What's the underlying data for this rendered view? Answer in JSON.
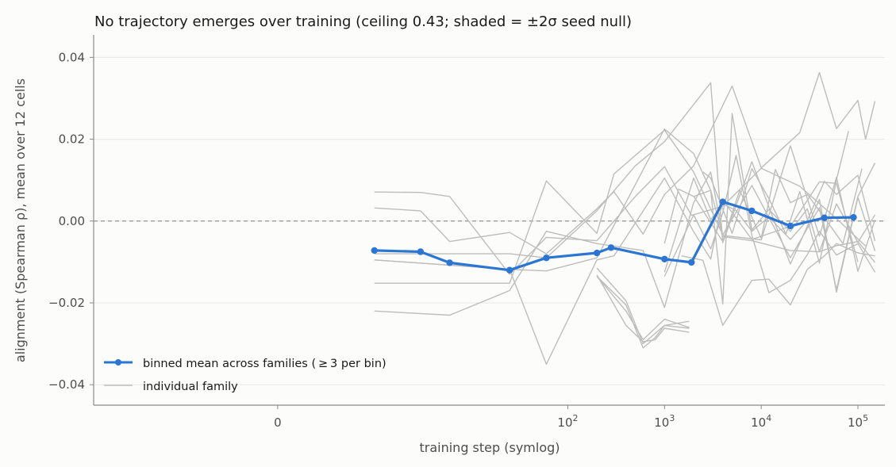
{
  "chart_data": {
    "type": "line",
    "title": "No trajectory emerges over training (ceiling 0.43; shaded = ±2σ seed null)",
    "xlabel": "training step (symlog)",
    "ylabel": "alignment (Spearman ρ), mean over 12 cells",
    "xscale": "symlog",
    "xlim": [
      -8,
      190000
    ],
    "ylim": [
      -0.045,
      0.0455
    ],
    "grid": "horizontal",
    "reference_line": 0,
    "x_ticks": [
      {
        "value": 0,
        "label": "0"
      },
      {
        "value": 100,
        "label": "10",
        "exp": "2"
      },
      {
        "value": 1000,
        "label": "10",
        "exp": "3"
      },
      {
        "value": 10000,
        "label": "10",
        "exp": "4"
      },
      {
        "value": 100000,
        "label": "10",
        "exp": "5"
      }
    ],
    "y_ticks": [
      {
        "value": 0.04,
        "label": "0.04"
      },
      {
        "value": 0.02,
        "label": "0.02"
      },
      {
        "value": 0.0,
        "label": "0.00"
      },
      {
        "value": -0.02,
        "label": "−0.02"
      },
      {
        "value": -0.04,
        "label": "−0.04"
      }
    ],
    "legend": {
      "position": "lower-left",
      "entries": [
        {
          "label": "binned mean across families ( ≥ 3 per bin)",
          "color": "#2a76d2"
        },
        {
          "label": "individual family",
          "color": "#bdbdbd"
        }
      ]
    },
    "mean_series": {
      "name": "binned mean across families ( ≥ 3 per bin)",
      "color": "#2a76d2",
      "points": [
        [
          1,
          -0.0072
        ],
        [
          3,
          -0.0075
        ],
        [
          6,
          -0.0102
        ],
        [
          25,
          -0.012
        ],
        [
          60,
          -0.009
        ],
        [
          200,
          -0.0078
        ],
        [
          280,
          -0.0065
        ],
        [
          1000,
          -0.0093
        ],
        [
          1900,
          -0.0101
        ],
        [
          4000,
          0.0047
        ],
        [
          8000,
          0.0025
        ],
        [
          20000,
          -0.0012
        ],
        [
          45000,
          0.0008
        ],
        [
          90000,
          0.0009
        ]
      ]
    },
    "family_series": [
      {
        "color": "#bdbdbd",
        "points": [
          [
            1,
            0.0071
          ],
          [
            3,
            0.007
          ],
          [
            6,
            0.006
          ],
          [
            25,
            -0.013
          ],
          [
            60,
            -0.004
          ],
          [
            200,
            -0.0048
          ],
          [
            500,
            0.006
          ],
          [
            1000,
            0.0133
          ],
          [
            1900,
            0.0014
          ],
          [
            4000,
            0.0036
          ],
          [
            10000,
            0.0129
          ],
          [
            25000,
            0.0085
          ],
          [
            60000,
            0.0006
          ],
          [
            120000,
            -0.0061
          ]
        ]
      },
      {
        "color": "#bdbdbd",
        "points": [
          [
            1,
            0.0032
          ],
          [
            3,
            0.0025
          ],
          [
            6,
            -0.005
          ],
          [
            25,
            -0.0028
          ],
          [
            60,
            -0.008
          ],
          [
            200,
            0.003
          ],
          [
            300,
            0.0072
          ],
          [
            600,
            -0.0032
          ],
          [
            1000,
            0.0065
          ],
          [
            2000,
            0.0135
          ],
          [
            5000,
            0.033
          ],
          [
            10000,
            0.013
          ],
          [
            25000,
            0.0216
          ],
          [
            40000,
            0.0363
          ],
          [
            60000,
            0.0226
          ],
          [
            100000,
            0.0295
          ],
          [
            120000,
            0.02
          ],
          [
            150000,
            0.0293
          ]
        ]
      },
      {
        "color": "#bdbdbd",
        "points": [
          [
            1,
            -0.008
          ],
          [
            25,
            -0.008
          ],
          [
            60,
            -0.009
          ],
          [
            200,
            0.0025
          ],
          [
            500,
            0.0135
          ],
          [
            1000,
            0.0194
          ],
          [
            3000,
            0.0338
          ],
          [
            4000,
            -0.0053
          ],
          [
            8000,
            0.0145
          ],
          [
            20000,
            -0.0105
          ],
          [
            40000,
            0.0053
          ],
          [
            60000,
            -0.0174
          ],
          [
            100000,
            0.0058
          ],
          [
            150000,
            -0.0073
          ]
        ]
      },
      {
        "color": "#bdbdbd",
        "points": [
          [
            1,
            -0.0152
          ],
          [
            25,
            -0.0152
          ],
          [
            60,
            0.0098
          ],
          [
            200,
            -0.003
          ],
          [
            300,
            0.0115
          ],
          [
            1000,
            0.0222
          ],
          [
            2000,
            0.012
          ],
          [
            4000,
            -0.0034
          ],
          [
            8000,
            0.0087
          ],
          [
            20000,
            -0.009
          ],
          [
            40000,
            0.0033
          ],
          [
            60000,
            -0.0168
          ],
          [
            100000,
            0.006
          ],
          [
            150000,
            0.0142
          ]
        ]
      },
      {
        "color": "#bdbdbd",
        "points": [
          [
            1,
            -0.022
          ],
          [
            6,
            -0.023
          ],
          [
            25,
            -0.017
          ],
          [
            60,
            -0.0025
          ],
          [
            200,
            -0.0055
          ],
          [
            600,
            -0.0072
          ],
          [
            1000,
            -0.0211
          ],
          [
            2000,
            0.0045
          ],
          [
            3000,
            0.012
          ],
          [
            4000,
            -0.0035
          ],
          [
            10000,
            -0.0046
          ],
          [
            20000,
            0.0184
          ],
          [
            40000,
            -0.0037
          ],
          [
            60000,
            0.0107
          ],
          [
            100000,
            -0.0123
          ],
          [
            150000,
            0.0003
          ]
        ]
      },
      {
        "color": "#bdbdbd",
        "points": [
          [
            1,
            -0.0095
          ],
          [
            25,
            -0.0118
          ],
          [
            60,
            -0.035
          ],
          [
            200,
            -0.0095
          ],
          [
            300,
            -0.0085
          ],
          [
            1000,
            0.0105
          ],
          [
            2000,
            -0.0026
          ],
          [
            3000,
            -0.0093
          ],
          [
            4000,
            0.0052
          ],
          [
            8000,
            -0.0045
          ],
          [
            20000,
            -0.0013
          ],
          [
            40000,
            0.0096
          ],
          [
            60000,
            0.0092
          ],
          [
            100000,
            -0.01
          ]
        ]
      },
      {
        "color": "#bdbdbd",
        "points": [
          [
            1,
            -0.0095
          ],
          [
            25,
            -0.0118
          ],
          [
            60,
            -0.0122
          ],
          [
            200,
            -0.009
          ],
          [
            1000,
            0.0225
          ],
          [
            2000,
            0.0165
          ],
          [
            3000,
            0.0075
          ],
          [
            4000,
            -0.0038
          ],
          [
            8000,
            -0.0048
          ],
          [
            20000,
            -0.0072
          ],
          [
            40000,
            -0.0075
          ],
          [
            60000,
            -0.006
          ],
          [
            100000,
            -0.005
          ],
          [
            150000,
            -0.0101
          ]
        ]
      },
      {
        "color": "#bdbdbd",
        "points": [
          [
            200,
            -0.0115
          ],
          [
            400,
            -0.0195
          ],
          [
            600,
            -0.03
          ],
          [
            1000,
            -0.0255
          ],
          [
            1800,
            -0.0245
          ]
        ]
      },
      {
        "color": "#bdbdbd",
        "points": [
          [
            200,
            -0.0135
          ],
          [
            400,
            -0.022
          ],
          [
            600,
            -0.029
          ],
          [
            1000,
            -0.024
          ],
          [
            1800,
            -0.026
          ]
        ]
      },
      {
        "color": "#bdbdbd",
        "points": [
          [
            200,
            -0.0132
          ],
          [
            400,
            -0.0255
          ],
          [
            600,
            -0.0295
          ],
          [
            800,
            -0.029
          ],
          [
            1000,
            -0.0262
          ],
          [
            1800,
            -0.0272
          ]
        ]
      },
      {
        "color": "#bdbdbd",
        "points": [
          [
            200,
            -0.0135
          ],
          [
            400,
            -0.0205
          ],
          [
            600,
            -0.031
          ],
          [
            800,
            -0.0285
          ],
          [
            1000,
            -0.0255
          ],
          [
            1800,
            -0.0262
          ]
        ]
      },
      {
        "color": "#bdbdbd",
        "points": [
          [
            1000,
            -0.0055
          ],
          [
            1400,
            0.0078
          ],
          [
            2000,
            0.006
          ],
          [
            3000,
            0.0075
          ],
          [
            4000,
            -0.0203
          ],
          [
            5000,
            0.0263
          ],
          [
            8000,
            -0.0022
          ],
          [
            12000,
            0.0028
          ],
          [
            20000,
            -0.0025
          ],
          [
            30000,
            0.003
          ],
          [
            40000,
            -0.0075
          ],
          [
            60000,
            0.0042
          ],
          [
            100000,
            -0.0052
          ],
          [
            150000,
            0.0015
          ]
        ]
      },
      {
        "color": "#bdbdbd",
        "points": [
          [
            1000,
            -0.0135
          ],
          [
            2000,
            0.0015
          ],
          [
            3000,
            -0.0068
          ],
          [
            4000,
            0.002
          ],
          [
            5500,
            0.016
          ],
          [
            8000,
            -0.0035
          ],
          [
            12000,
            -0.0175
          ],
          [
            20000,
            -0.0145
          ],
          [
            30000,
            -0.0082
          ],
          [
            40000,
            -0.0025
          ],
          [
            60000,
            -0.0083
          ],
          [
            100000,
            -0.0055
          ],
          [
            150000,
            -0.0125
          ]
        ]
      },
      {
        "color": "#bdbdbd",
        "points": [
          [
            1000,
            -0.0125
          ],
          [
            2000,
            0.0105
          ],
          [
            3000,
            0.0003
          ],
          [
            4000,
            0.0042
          ],
          [
            5500,
            0.0026
          ],
          [
            8000,
            -0.0025
          ],
          [
            12000,
            0.001
          ],
          [
            20000,
            -0.0045
          ],
          [
            30000,
            0.0002
          ],
          [
            45000,
            0.0097
          ],
          [
            60000,
            0.0065
          ],
          [
            100000,
            0.0112
          ],
          [
            150000,
            -0.0049
          ]
        ]
      },
      {
        "color": "#bdbdbd",
        "points": [
          [
            1500,
            -0.0085
          ],
          [
            2500,
            -0.0096
          ],
          [
            4000,
            -0.0255
          ],
          [
            8000,
            -0.0145
          ],
          [
            12000,
            -0.0142
          ],
          [
            20000,
            -0.0205
          ],
          [
            30000,
            -0.0118
          ],
          [
            45000,
            -0.0085
          ],
          [
            60000,
            -0.0055
          ],
          [
            100000,
            -0.0078
          ],
          [
            150000,
            -0.0085
          ]
        ]
      },
      {
        "color": "#bdbdbd",
        "points": [
          [
            2000,
            0.0061
          ],
          [
            4000,
            -0.005
          ],
          [
            6000,
            0.0075
          ],
          [
            10000,
            -0.0042
          ],
          [
            14000,
            0.0126
          ],
          [
            20000,
            0.0045
          ],
          [
            30000,
            0.0065
          ],
          [
            45000,
            0.0008
          ],
          [
            70000,
            -0.0055
          ],
          [
            110000,
            0.0128
          ]
        ]
      },
      {
        "color": "#bdbdbd",
        "points": [
          [
            2500,
            0.012
          ],
          [
            3000,
            0.0105
          ],
          [
            5000,
            -0.003
          ],
          [
            8000,
            0.0128
          ],
          [
            12000,
            0.0055
          ],
          [
            18000,
            -0.0032
          ],
          [
            25000,
            0.0072
          ],
          [
            40000,
            -0.0103
          ],
          [
            60000,
            0.0101
          ],
          [
            80000,
            0.022
          ]
        ]
      }
    ]
  }
}
